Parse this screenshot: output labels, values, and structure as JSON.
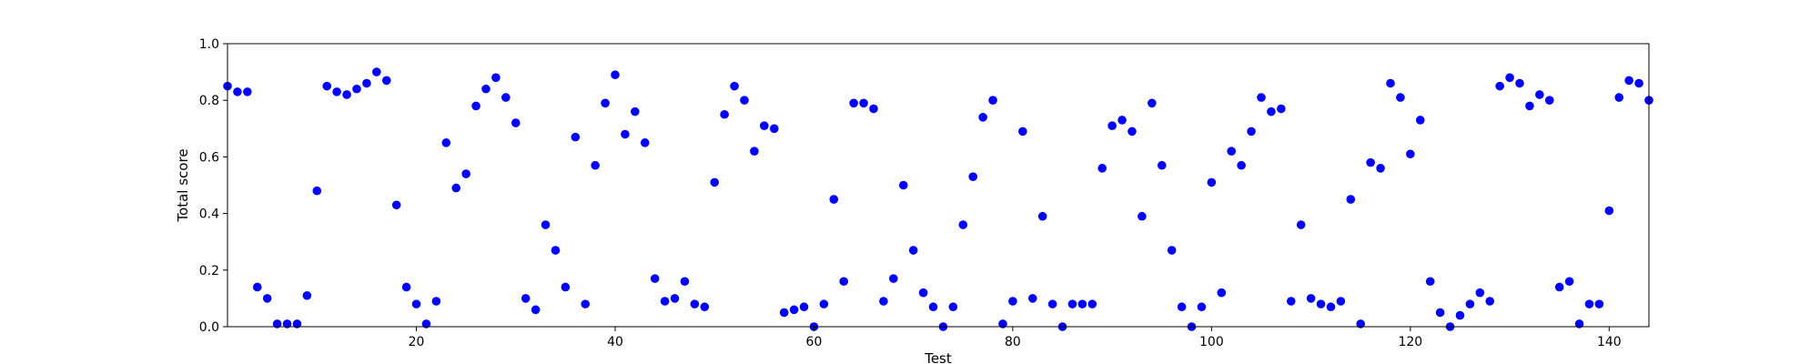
{
  "chart_data": {
    "type": "scatter",
    "title": "",
    "xlabel": "Test",
    "ylabel": "Total score",
    "xlim": [
      1,
      144
    ],
    "ylim": [
      0.0,
      1.0
    ],
    "x_ticks": [
      20,
      40,
      60,
      80,
      100,
      120,
      140
    ],
    "y_ticks": [
      "0.0",
      "0.2",
      "0.4",
      "0.6",
      "0.8",
      "1.0"
    ],
    "grid": false,
    "point_color": "#0000ff",
    "series": [
      {
        "x": [
          1,
          2,
          3,
          4,
          5,
          6,
          7,
          8,
          9,
          10,
          11,
          12,
          13,
          14,
          15,
          16,
          17,
          18,
          19,
          20,
          21,
          22,
          23,
          24,
          25,
          26,
          27,
          28,
          29,
          30,
          31,
          32,
          33,
          34,
          35,
          36,
          37,
          38,
          39,
          40,
          41,
          42,
          43,
          44,
          45,
          46,
          47,
          48,
          49,
          50,
          51,
          52,
          53,
          54,
          55,
          56,
          57,
          58,
          59,
          60,
          61,
          62,
          63,
          64,
          65,
          66,
          67,
          68,
          69,
          70,
          71,
          72,
          73,
          74,
          75,
          76,
          77,
          78,
          79,
          80,
          81,
          82,
          83,
          84,
          85,
          86,
          87,
          88,
          89,
          90,
          91,
          92,
          93,
          94,
          95,
          96,
          97,
          98,
          99,
          100,
          101,
          102,
          103,
          104,
          105,
          106,
          107,
          108,
          109,
          110,
          111,
          112,
          113,
          114,
          115,
          116,
          117,
          118,
          119,
          120,
          121,
          122,
          123,
          124,
          125,
          126,
          127,
          128,
          129,
          130,
          131,
          132,
          133,
          134,
          135,
          136,
          137,
          138,
          139,
          140,
          141,
          142,
          143,
          144
        ],
        "y": [
          0.85,
          0.83,
          0.83,
          0.14,
          0.1,
          0.01,
          0.01,
          0.01,
          0.11,
          0.48,
          0.85,
          0.83,
          0.82,
          0.84,
          0.86,
          0.9,
          0.87,
          0.43,
          0.14,
          0.08,
          0.01,
          0.09,
          0.65,
          0.49,
          0.54,
          0.78,
          0.84,
          0.88,
          0.81,
          0.72,
          0.1,
          0.06,
          0.36,
          0.27,
          0.14,
          0.67,
          0.08,
          0.57,
          0.79,
          0.89,
          0.68,
          0.76,
          0.65,
          0.17,
          0.09,
          0.1,
          0.16,
          0.08,
          0.07,
          0.51,
          0.75,
          0.85,
          0.8,
          0.62,
          0.71,
          0.7,
          0.05,
          0.06,
          0.07,
          0.0,
          0.08,
          0.45,
          0.16,
          0.79,
          0.79,
          0.77,
          0.09,
          0.17,
          0.5,
          0.27,
          0.12,
          0.07,
          0.0,
          0.07,
          0.36,
          0.53,
          0.74,
          0.8,
          0.01,
          0.09,
          0.69,
          0.1,
          0.39,
          0.08,
          0.0,
          0.08,
          0.08,
          0.08,
          0.56,
          0.71,
          0.73,
          0.69,
          0.39,
          0.79,
          0.57,
          0.27,
          0.07,
          0.0,
          0.07,
          0.51,
          0.12,
          0.62,
          0.57,
          0.69,
          0.81,
          0.76,
          0.77,
          0.09,
          0.36,
          0.1,
          0.08,
          0.07,
          0.09,
          0.45,
          0.01,
          0.58,
          0.56,
          0.86,
          0.81,
          0.61,
          0.73,
          0.16,
          0.05,
          0.0,
          0.04,
          0.08,
          0.12,
          0.09,
          0.85,
          0.88,
          0.86,
          0.78,
          0.82,
          0.8,
          0.14,
          0.16,
          0.01,
          0.08,
          0.08,
          0.41,
          0.81,
          0.87,
          0.86,
          0.8
        ]
      }
    ]
  }
}
